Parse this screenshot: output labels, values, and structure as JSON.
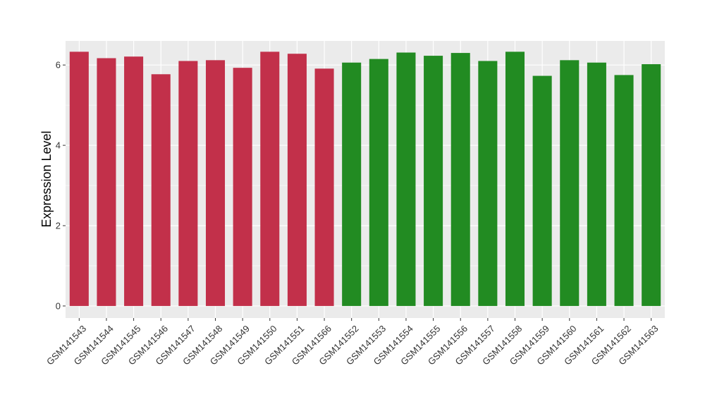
{
  "chart_data": {
    "type": "bar",
    "title": "",
    "xlabel": "",
    "ylabel": "Expression Level",
    "ylim": [
      -0.3,
      6.6
    ],
    "yticks": [
      0,
      2,
      4,
      6
    ],
    "grid": true,
    "legend": "none",
    "categories": [
      "GSM141543",
      "GSM141544",
      "GSM141545",
      "GSM141546",
      "GSM141547",
      "GSM141548",
      "GSM141549",
      "GSM141550",
      "GSM141551",
      "GSM141566",
      "GSM141552",
      "GSM141553",
      "GSM141554",
      "GSM141555",
      "GSM141556",
      "GSM141557",
      "GSM141558",
      "GSM141559",
      "GSM141560",
      "GSM141561",
      "GSM141562",
      "GSM141563"
    ],
    "values": [
      6.33,
      6.17,
      6.21,
      5.77,
      6.1,
      6.12,
      5.93,
      6.33,
      6.28,
      5.91,
      6.06,
      6.15,
      6.31,
      6.23,
      6.3,
      6.1,
      6.33,
      5.73,
      6.12,
      6.06,
      5.75,
      6.02
    ],
    "groups": [
      "a",
      "a",
      "a",
      "a",
      "a",
      "a",
      "a",
      "a",
      "a",
      "a",
      "b",
      "b",
      "b",
      "b",
      "b",
      "b",
      "b",
      "b",
      "b",
      "b",
      "b",
      "b"
    ],
    "colors": {
      "a": "#C2304A",
      "b": "#228B22"
    },
    "panel_background": "#EBEBEB",
    "grid_color": "#FFFFFF"
  }
}
